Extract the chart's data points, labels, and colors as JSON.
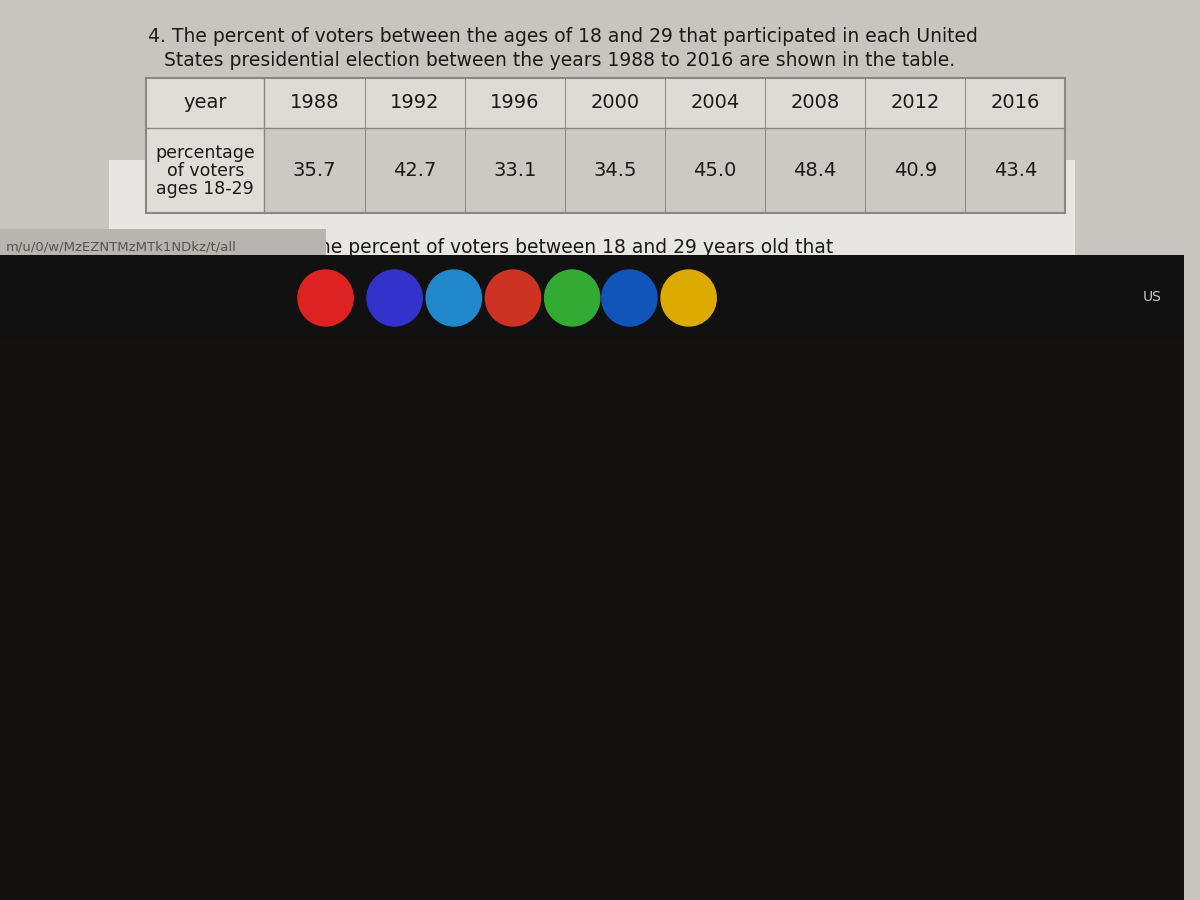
{
  "years": [
    "1988",
    "1992",
    "1996",
    "2000",
    "2004",
    "2008",
    "2012",
    "2016"
  ],
  "percentages": [
    "35.7",
    "42.7",
    "33.1",
    "34.5",
    "45.0",
    "48.4",
    "40.9",
    "43.4"
  ],
  "row1_label": "year",
  "row2_label_line1": "percentage",
  "row2_label_line2": "of voters",
  "row2_label_line3": "ages 18-29",
  "bg_color": "#c8c4c0",
  "content_bg": "#e8e6e2",
  "table_label_bg": "#dedad6",
  "table_data_row_bg": "#d0ccc8",
  "table_border_color": "#888880",
  "text_color": "#1a1a18",
  "url_text": "m/u/0/w/MzEZNTMzMTk1NDkz/t/all",
  "url_color": "#555550",
  "taskbar_color": "#111111",
  "taskbar_bg_color": "#1e1c1a",
  "url_bar_color": "#b8b4b0"
}
